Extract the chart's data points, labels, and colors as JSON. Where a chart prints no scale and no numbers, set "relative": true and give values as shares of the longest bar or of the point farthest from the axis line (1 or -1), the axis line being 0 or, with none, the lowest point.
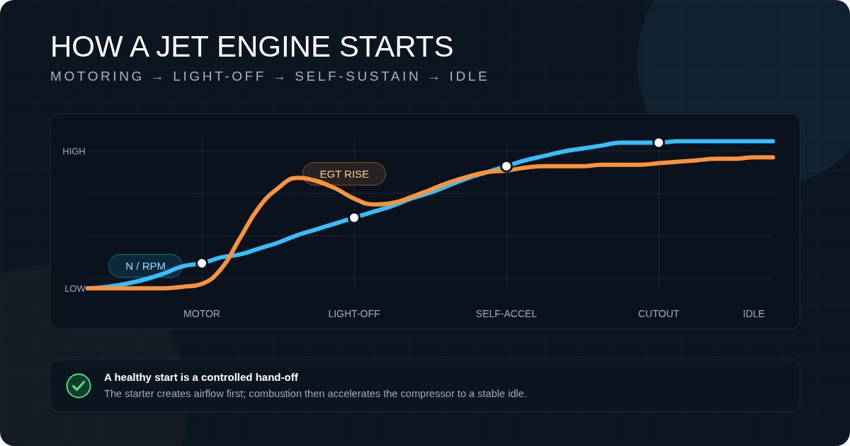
{
  "chart_data": {
    "type": "line",
    "title": "HOW A JET ENGINE STARTS",
    "subtitle": "MOTORING → LIGHT-OFF → SELF-SUSTAIN → IDLE",
    "annotations": [
      "HIGH",
      "LOW",
      "A healthy start is a controlled hand-off",
      "The starter creates airflow first; combustion then accelerates the compressor to a stable idle."
    ],
    "relative": true,
    "categories": [
      null,
      null,
      null,
      null,
      null,
      null,
      "MOTOR",
      null,
      null,
      null,
      null,
      null,
      null,
      null,
      "LIGHT-OFF",
      null,
      null,
      null,
      null,
      null,
      null,
      null,
      "SELF-ACCEL",
      null,
      null,
      null,
      null,
      null,
      null,
      null,
      "CUTOUT",
      null,
      null,
      null,
      null,
      "IDLE",
      null
    ],
    "grid": true,
    "legend": false,
    "series": [
      {
        "name": "N / RPM",
        "color": "#38bdf8",
        "values": [
          0,
          0.01,
          0.03,
          0.06,
          0.1,
          0.15,
          0.17,
          0.21,
          0.23,
          0.27,
          0.31,
          0.36,
          0.4,
          0.44,
          0.48,
          0.52,
          0.56,
          0.61,
          0.65,
          0.7,
          0.75,
          0.79,
          0.83,
          0.87,
          0.9,
          0.93,
          0.95,
          0.97,
          0.99,
          0.99,
          0.99,
          1,
          1,
          1,
          1,
          1,
          1
        ]
      },
      {
        "name": "EGT RISE",
        "color": "#fb923c",
        "values": [
          0,
          0,
          0,
          0,
          0,
          0.01,
          0.03,
          0.13,
          0.34,
          0.55,
          0.68,
          0.75,
          0.73,
          0.68,
          0.61,
          0.57,
          0.58,
          0.62,
          0.67,
          0.72,
          0.76,
          0.79,
          0.8,
          0.82,
          0.83,
          0.83,
          0.83,
          0.84,
          0.84,
          0.84,
          0.85,
          0.86,
          0.87,
          0.88,
          0.88,
          0.89,
          0.89
        ]
      },
      {
        "type": "scatter",
        "color": "#ffffff",
        "marker": "circle",
        "x": [
          "MOTOR",
          "LIGHT-OFF",
          "SELF-ACCEL",
          "CUTOUT"
        ],
        "values": [
          0.17,
          0.48,
          0.83,
          0.99
        ]
      }
    ]
  }
}
